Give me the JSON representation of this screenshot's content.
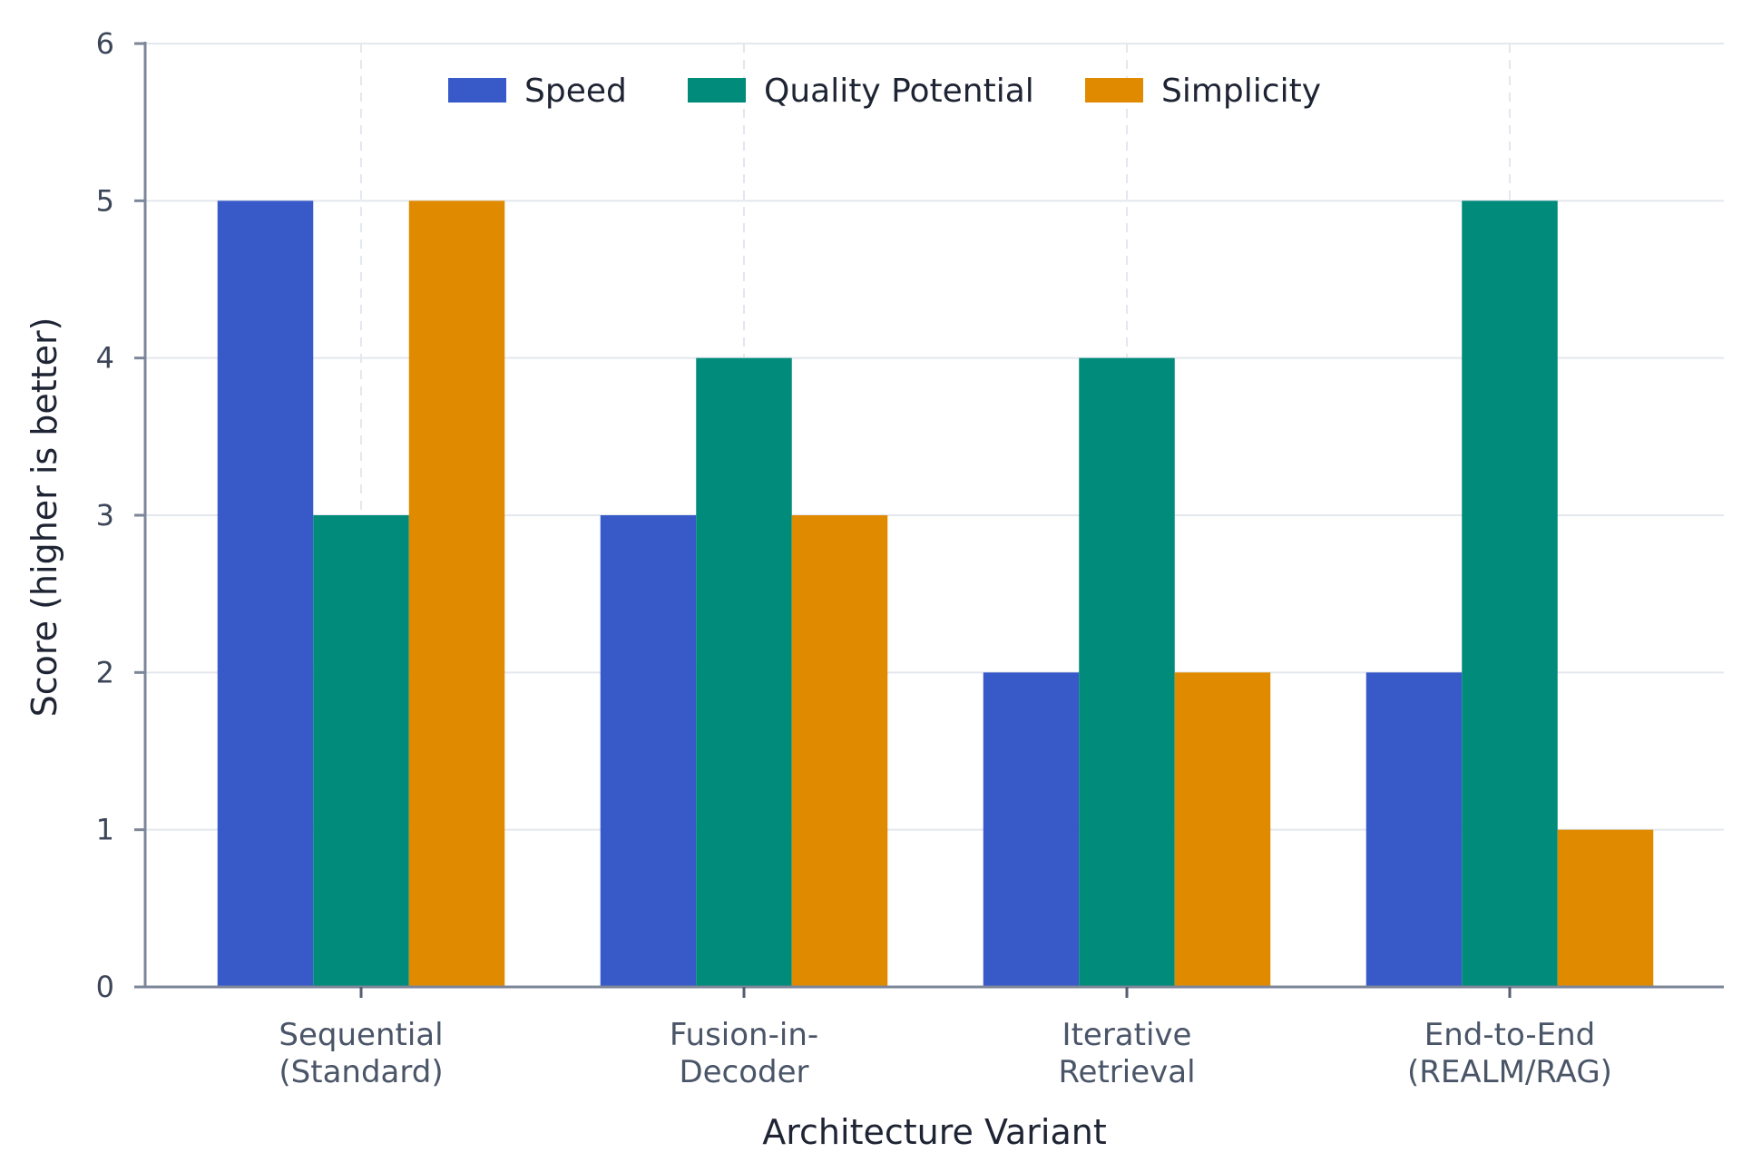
{
  "chart_data": {
    "type": "bar",
    "categories": [
      [
        "Sequential",
        "(Standard)"
      ],
      [
        "Fusion-in-",
        "Decoder"
      ],
      [
        "Iterative",
        "Retrieval"
      ],
      [
        "End-to-End",
        "(REALM/RAG)"
      ]
    ],
    "series": [
      {
        "name": "Speed",
        "color": "#3859c8",
        "values": [
          5,
          3,
          2,
          2
        ]
      },
      {
        "name": "Quality Potential",
        "color": "#008b7a",
        "values": [
          3,
          4,
          4,
          5
        ]
      },
      {
        "name": "Simplicity",
        "color": "#e08a00",
        "values": [
          5,
          3,
          2,
          1
        ]
      }
    ],
    "xlabel": "Architecture Variant",
    "ylabel": "Score (higher is better)",
    "ylim": [
      0,
      6
    ],
    "yticks": [
      0,
      1,
      2,
      3,
      4,
      5,
      6
    ],
    "grid": true,
    "legend_position": "top-center"
  }
}
